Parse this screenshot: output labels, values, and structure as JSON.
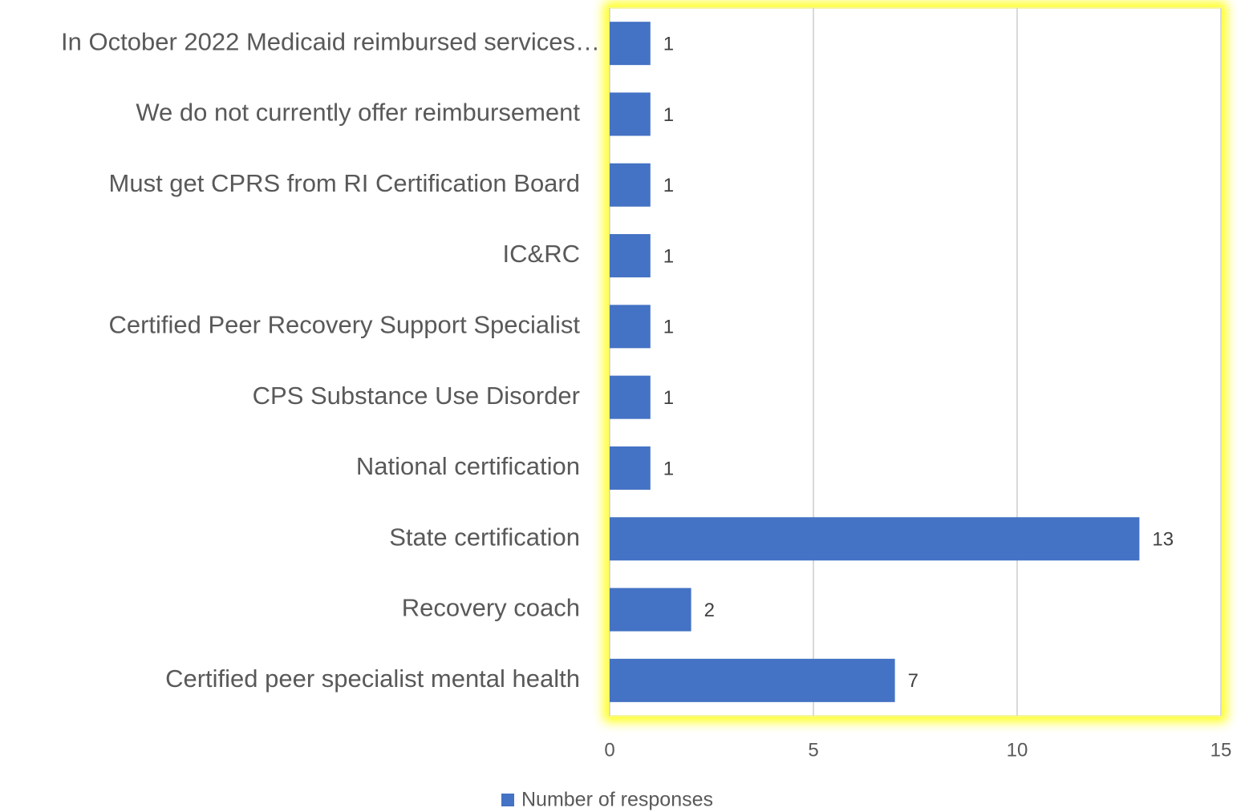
{
  "chart_data": {
    "type": "bar",
    "orientation": "horizontal",
    "categories": [
      "In October 2022 Medicaid reimbursed services…",
      "We do not currently offer reimbursement",
      "Must get CPRS from RI Certification Board",
      "IC&RC",
      "Certified Peer Recovery Support Specialist",
      "CPS Substance Use Disorder",
      "National certification",
      "State certification",
      "Recovery coach",
      "Certified peer specialist mental health"
    ],
    "series": [
      {
        "name": "Number of responses",
        "color": "#4472c4",
        "values": [
          1,
          1,
          1,
          1,
          1,
          1,
          1,
          13,
          2,
          7
        ]
      }
    ],
    "xlim": [
      0,
      15
    ],
    "xticks": [
      0,
      5,
      10,
      15
    ],
    "grid": true,
    "legend": "bottom"
  }
}
